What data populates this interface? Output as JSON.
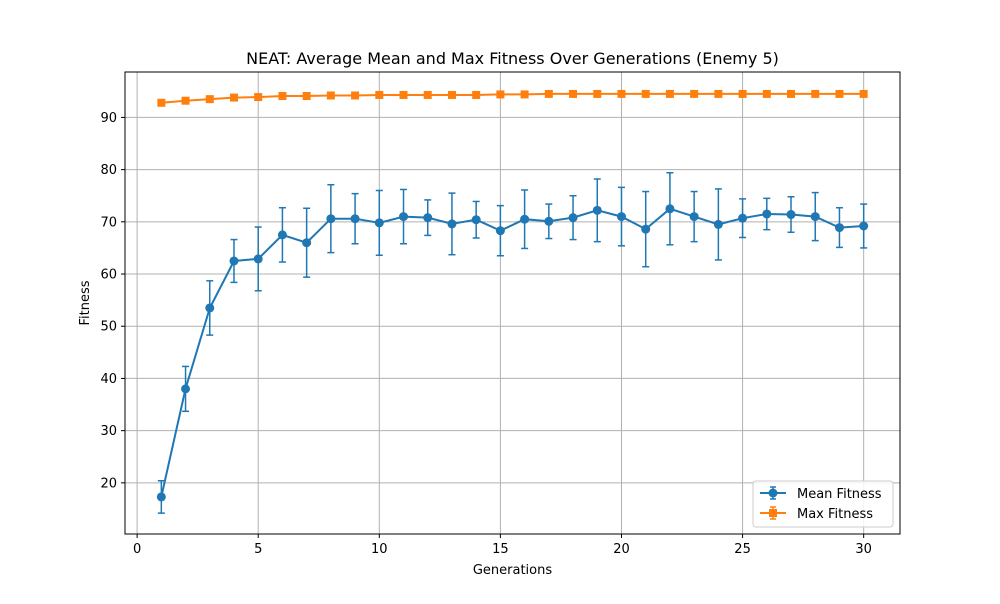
{
  "chart_data": {
    "type": "line",
    "title": "NEAT: Average Mean and Max Fitness Over Generations (Enemy 5)",
    "xlabel": "Generations",
    "ylabel": "Fitness",
    "xlim": [
      -0.5,
      31.5
    ],
    "ylim": [
      10.2,
      98.7
    ],
    "xticks": [
      0,
      5,
      10,
      15,
      20,
      25,
      30
    ],
    "yticks": [
      20,
      30,
      40,
      50,
      60,
      70,
      80,
      90
    ],
    "grid": true,
    "legend_position": "lower-right",
    "x": [
      1,
      2,
      3,
      4,
      5,
      6,
      7,
      8,
      9,
      10,
      11,
      12,
      13,
      14,
      15,
      16,
      17,
      18,
      19,
      20,
      21,
      22,
      23,
      24,
      25,
      26,
      27,
      28,
      29,
      30
    ],
    "series": [
      {
        "name": "Mean Fitness",
        "color": "#1f77b4",
        "marker": "circle",
        "values": [
          17.3,
          38.0,
          53.5,
          62.5,
          62.9,
          67.5,
          66.0,
          70.6,
          70.6,
          69.8,
          71.0,
          70.8,
          69.6,
          70.4,
          68.3,
          70.5,
          70.1,
          70.8,
          72.2,
          71.0,
          68.6,
          72.5,
          71.0,
          69.5,
          70.7,
          71.5,
          71.4,
          71.0,
          68.9,
          69.2
        ],
        "error": [
          3.1,
          4.3,
          5.2,
          4.1,
          6.1,
          5.2,
          6.6,
          6.5,
          4.8,
          6.2,
          5.2,
          3.4,
          5.9,
          3.5,
          4.8,
          5.6,
          3.3,
          4.2,
          6.0,
          5.6,
          7.2,
          6.9,
          4.8,
          6.8,
          3.7,
          3.0,
          3.4,
          4.6,
          3.8,
          4.2
        ]
      },
      {
        "name": "Max Fitness",
        "color": "#ff7f0e",
        "marker": "square",
        "values": [
          92.8,
          93.2,
          93.5,
          93.8,
          93.9,
          94.1,
          94.1,
          94.2,
          94.2,
          94.3,
          94.3,
          94.3,
          94.3,
          94.3,
          94.4,
          94.4,
          94.5,
          94.5,
          94.5,
          94.5,
          94.5,
          94.5,
          94.5,
          94.5,
          94.5,
          94.5,
          94.5,
          94.5,
          94.5,
          94.5
        ],
        "error": [
          0.3,
          0.3,
          0.3,
          0.3,
          0.3,
          0.3,
          0.3,
          0.3,
          0.3,
          0.3,
          0.3,
          0.3,
          0.3,
          0.3,
          0.3,
          0.3,
          0.3,
          0.3,
          0.3,
          0.3,
          0.3,
          0.3,
          0.3,
          0.3,
          0.3,
          0.3,
          0.3,
          0.3,
          0.3,
          0.3
        ]
      }
    ]
  }
}
